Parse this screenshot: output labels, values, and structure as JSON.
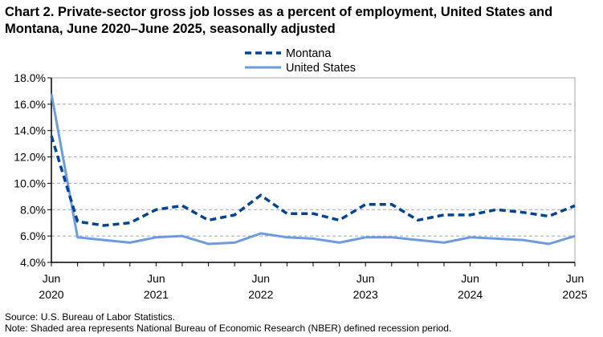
{
  "chart_data": {
    "type": "line",
    "title": "Chart 2. Private-sector gross job losses as a percent of employment, United States and Montana, June 2020–June 2025, seasonally adjusted",
    "x": [
      "Jun 2020",
      "Sep 2020",
      "Dec 2020",
      "Mar 2021",
      "Jun 2021",
      "Sep 2021",
      "Dec 2021",
      "Mar 2022",
      "Jun 2022",
      "Sep 2022",
      "Dec 2022",
      "Mar 2023",
      "Jun 2023",
      "Sep 2023",
      "Dec 2023",
      "Mar 2024",
      "Jun 2024",
      "Sep 2024",
      "Dec 2024",
      "Mar 2025",
      "Jun 2025"
    ],
    "x_tick_labels": [
      {
        "index": 0,
        "month": "Jun",
        "year": "2020"
      },
      {
        "index": 4,
        "month": "Jun",
        "year": "2021"
      },
      {
        "index": 8,
        "month": "Jun",
        "year": "2022"
      },
      {
        "index": 12,
        "month": "Jun",
        "year": "2023"
      },
      {
        "index": 16,
        "month": "Jun",
        "year": "2024"
      },
      {
        "index": 20,
        "month": "Jun",
        "year": "2025"
      }
    ],
    "y_ticks": [
      "4.0%",
      "6.0%",
      "8.0%",
      "10.0%",
      "12.0%",
      "14.0%",
      "16.0%",
      "18.0%"
    ],
    "ylim": [
      4,
      18
    ],
    "grid": "horizontal dashed",
    "legend_placement": "top-center",
    "series": [
      {
        "name": "Montana",
        "style": "dashed",
        "color": "#004494",
        "values": [
          13.6,
          7.1,
          6.8,
          7.0,
          8.0,
          8.3,
          7.2,
          7.6,
          9.1,
          7.7,
          7.7,
          7.2,
          8.4,
          8.4,
          7.2,
          7.6,
          7.6,
          8.0,
          7.8,
          7.5,
          8.3
        ]
      },
      {
        "name": "United States",
        "style": "solid",
        "color": "#6e9ae0",
        "values": [
          16.8,
          5.9,
          5.7,
          5.5,
          5.9,
          6.0,
          5.4,
          5.5,
          6.2,
          5.9,
          5.8,
          5.5,
          5.9,
          5.9,
          5.7,
          5.5,
          5.9,
          5.8,
          5.7,
          5.4,
          6.0
        ]
      }
    ]
  },
  "footer": {
    "source": "Source: U.S. Bureau of Labor Statistics.",
    "note": "Note: Shaded area represents National Bureau of Economic Research (NBER) defined recession period."
  }
}
